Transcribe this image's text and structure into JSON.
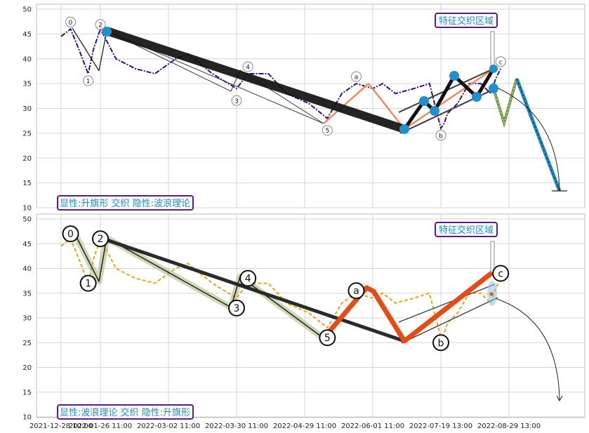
{
  "chart_data": [
    {
      "type": "line",
      "panel": "top",
      "ylim": [
        10,
        51
      ],
      "y_ticks": [
        "10",
        "15",
        "20",
        "25",
        "30",
        "35",
        "40",
        "45",
        "50"
      ],
      "grid": true,
      "series": [
        {
          "style": "dash-dot",
          "color": "#3d0a7a",
          "x": [
            "2021-12-28",
            "2022-01-04",
            "2022-01-10",
            "2022-01-17",
            "2022-01-21",
            "2022-01-26",
            "2022-02-03",
            "2022-02-13",
            "2022-02-23",
            "2022-03-05",
            "2022-03-10",
            "2022-03-20",
            "2022-03-30",
            "2022-04-04",
            "2022-04-13",
            "2022-04-21",
            "2022-05-01",
            "2022-05-10",
            "2022-05-17",
            "2022-05-24",
            "2022-06-01",
            "2022-06-08",
            "2022-06-17",
            "2022-06-30",
            "2022-07-11",
            "2022-07-19",
            "2022-07-21",
            "2022-07-23",
            "2022-07-29",
            "2022-08-05",
            "2022-08-12",
            "2022-08-18",
            "2022-08-21",
            "2022-08-24"
          ],
          "y": [
            44.5,
            46,
            42,
            37,
            42,
            46,
            40,
            38,
            37,
            40,
            41,
            37,
            34,
            37,
            37,
            33,
            31,
            28,
            33,
            35,
            34,
            35,
            33,
            34,
            35,
            26,
            27,
            29,
            31,
            35,
            35,
            33,
            36,
            38
          ]
        }
      ],
      "wave_points": [
        {
          "label": "0",
          "x": "2022-01-04",
          "y": 46
        },
        {
          "label": "1",
          "x": "2022-01-17",
          "y": 37
        },
        {
          "label": "2",
          "x": "2022-01-26",
          "y": 45.5
        },
        {
          "label": "3",
          "x": "2022-03-30",
          "y": 33
        },
        {
          "label": "4",
          "x": "2022-04-04",
          "y": 37
        },
        {
          "label": "5",
          "x": "2022-05-10",
          "y": 27
        },
        {
          "label": "a",
          "x": "2022-05-24",
          "y": 35
        },
        {
          "label": "b",
          "x": "2022-07-19",
          "y": 26
        },
        {
          "label": "c",
          "x": "2022-08-24",
          "y": 38
        }
      ],
      "annotation_title": "特征交织区域",
      "annotation_note": "显性:升旗形 交织 隐性:波浪理论",
      "projected_target": 13
    },
    {
      "type": "line",
      "panel": "bottom",
      "ylim": [
        10,
        51
      ],
      "y_ticks": [
        "10",
        "15",
        "20",
        "25",
        "30",
        "35",
        "40",
        "45",
        "50"
      ],
      "x_ticks": [
        "2021-12-28 10:00",
        "2022-01-26 11:00",
        "2022-03-02 11:00",
        "2022-03-30 11:00",
        "2022-04-29 11:00",
        "2022-06-01 11:00",
        "2022-07-19 13:00",
        "2022-08-29 13:00"
      ],
      "grid": true,
      "series": [
        {
          "style": "dashed",
          "color": "#e8a21f",
          "x": [
            "2021-12-28",
            "2022-01-04",
            "2022-01-10",
            "2022-01-17",
            "2022-01-21",
            "2022-01-26",
            "2022-02-03",
            "2022-02-13",
            "2022-02-23",
            "2022-03-05",
            "2022-03-10",
            "2022-03-20",
            "2022-03-30",
            "2022-04-04",
            "2022-04-13",
            "2022-04-21",
            "2022-05-01",
            "2022-05-10",
            "2022-05-17",
            "2022-05-24",
            "2022-06-01",
            "2022-06-08",
            "2022-06-17",
            "2022-06-30",
            "2022-07-11",
            "2022-07-19",
            "2022-07-21",
            "2022-07-23",
            "2022-07-29",
            "2022-08-05",
            "2022-08-12",
            "2022-08-18",
            "2022-08-21",
            "2022-08-24"
          ],
          "y": [
            44.5,
            46,
            42,
            37,
            42,
            46,
            40,
            38,
            37,
            40,
            41,
            37,
            34,
            37,
            37,
            33,
            31,
            28,
            33,
            35,
            34,
            35,
            33,
            34,
            35,
            26,
            27,
            29,
            31,
            35,
            35,
            33,
            36,
            38
          ]
        }
      ],
      "wave_points": [
        {
          "label": "0",
          "x": "2022-01-04",
          "y": 47
        },
        {
          "label": "1",
          "x": "2022-01-17",
          "y": 37
        },
        {
          "label": "2",
          "x": "2022-01-26",
          "y": 46
        },
        {
          "label": "3",
          "x": "2022-03-30",
          "y": 32
        },
        {
          "label": "4",
          "x": "2022-04-04",
          "y": 38
        },
        {
          "label": "5",
          "x": "2022-05-10",
          "y": 26
        },
        {
          "label": "a",
          "x": "2022-05-24",
          "y": 35.5
        },
        {
          "label": "b",
          "x": "2022-07-19",
          "y": 25
        },
        {
          "label": "c",
          "x": "2022-08-24",
          "y": 39
        }
      ],
      "annotation_title": "特征交织区域",
      "annotation_note": "显性:波浪理论 交织 隐性:升旗形",
      "projected_target": 13
    }
  ]
}
